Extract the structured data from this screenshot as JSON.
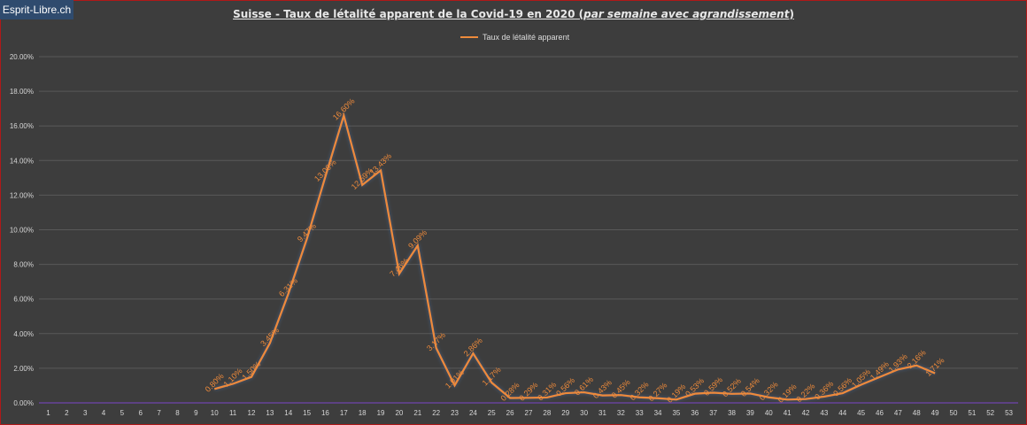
{
  "brand": "Esprit-Libre.ch",
  "title_main": "Suisse - Taux de létalité apparent de la Covid-19 en 2020",
  "title_sub": "par semaine avec agrandissement",
  "colors": {
    "background": "#3d3d3d",
    "line": "#ed8a3b",
    "grid": "#595959",
    "axis": "#7a45c9",
    "border": "#b01818"
  },
  "chart_data": {
    "type": "line",
    "title": "Suisse - Taux de létalité apparent de la Covid-19 en 2020 (par semaine avec agrandissement)",
    "xlabel": "",
    "ylabel": "",
    "categories": [
      "1",
      "2",
      "3",
      "4",
      "5",
      "6",
      "7",
      "8",
      "9",
      "10",
      "11",
      "12",
      "13",
      "14",
      "15",
      "16",
      "17",
      "18",
      "19",
      "20",
      "21",
      "22",
      "23",
      "24",
      "25",
      "26",
      "27",
      "28",
      "29",
      "30",
      "31",
      "32",
      "33",
      "34",
      "35",
      "36",
      "37",
      "38",
      "39",
      "40",
      "41",
      "42",
      "43",
      "44",
      "45",
      "46",
      "47",
      "48",
      "49",
      "50",
      "51",
      "52",
      "53"
    ],
    "ylim": [
      0,
      20
    ],
    "y_ticks": [
      "0.00%",
      "2.00%",
      "4.00%",
      "6.00%",
      "8.00%",
      "10.00%",
      "12.00%",
      "14.00%",
      "16.00%",
      "18.00%",
      "20.00%"
    ],
    "grid": true,
    "legend_position": "top-center",
    "series": [
      {
        "name": "Taux de létalité apparent",
        "x": [
          10,
          11,
          12,
          13,
          14,
          15,
          16,
          17,
          18,
          19,
          20,
          21,
          22,
          23,
          24,
          25,
          26,
          27,
          28,
          29,
          30,
          31,
          32,
          33,
          34,
          35,
          36,
          37,
          38,
          39,
          40,
          41,
          42,
          43,
          44,
          45,
          46,
          47,
          48,
          49
        ],
        "values": [
          0.8,
          1.1,
          1.5,
          3.45,
          6.31,
          9.47,
          13.06,
          16.6,
          12.59,
          13.43,
          7.46,
          9.09,
          3.17,
          1.01,
          2.86,
          1.17,
          0.28,
          0.29,
          0.31,
          0.56,
          0.61,
          0.43,
          0.45,
          0.32,
          0.27,
          0.19,
          0.53,
          0.59,
          0.52,
          0.54,
          0.32,
          0.19,
          0.22,
          0.36,
          0.56,
          1.05,
          1.49,
          1.93,
          2.16,
          1.71
        ],
        "labels": [
          "0.80%",
          "1.10%",
          "1.50%",
          "3.45%",
          "6.31%",
          "9.47%",
          "13.06%",
          "16.60%",
          "12.59%",
          "13.43%",
          "7.46%",
          "9.09%",
          "3.17%",
          "1.01%",
          "2.86%",
          "1.17%",
          "0.28%",
          "0.29%",
          "0.31%",
          "0.56%",
          "0.61%",
          "0.43%",
          "0.45%",
          "0.32%",
          "0.27%",
          "0.19%",
          "0.53%",
          "0.59%",
          "0.52%",
          "0.54%",
          "0.32%",
          "0.19%",
          "0.22%",
          "0.36%",
          "0.56%",
          "1.05%",
          "1.49%",
          "1.93%",
          "2.16%",
          "1.71%"
        ]
      }
    ]
  }
}
